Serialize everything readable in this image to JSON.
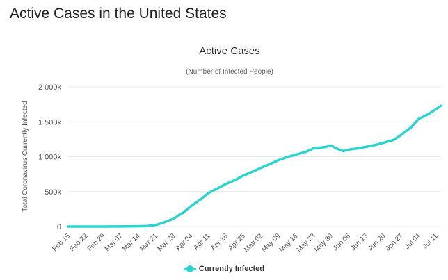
{
  "page": {
    "heading": "Active Cases in the United States"
  },
  "colors": {
    "series": "#2bd4cf",
    "grid": "#e8e8e8",
    "axis_text": "#555555"
  },
  "chart_data": {
    "type": "line",
    "title": "Active Cases",
    "subtitle": "(Number of Infected People)",
    "xlabel": "",
    "ylabel": "Total Coronavirus Currently Infected",
    "ylim": [
      0,
      2000000
    ],
    "yticks": [
      0,
      500000,
      1000000,
      1500000,
      2000000
    ],
    "ytick_labels": [
      "0",
      "500k",
      "1 000k",
      "1 500k",
      "2 000k"
    ],
    "xlim": [
      "2020-02-15",
      "2020-07-13"
    ],
    "xtick_labels": [
      "Feb 15",
      "Feb 22",
      "Feb 29",
      "Mar 07",
      "Mar 14",
      "Mar 21",
      "Mar 28",
      "Apr 04",
      "Apr 11",
      "Apr 18",
      "Apr 25",
      "May 02",
      "May 09",
      "May 16",
      "May 23",
      "May 30",
      "Jun 06",
      "Jun 13",
      "Jun 20",
      "Jun 27",
      "Jul 04",
      "Jul 11"
    ],
    "grid": true,
    "legend": "bottom-center",
    "series": [
      {
        "name": "Currently Infected",
        "x": [
          "2020-02-15",
          "2020-02-22",
          "2020-02-29",
          "2020-03-07",
          "2020-03-10",
          "2020-03-14",
          "2020-03-18",
          "2020-03-21",
          "2020-03-24",
          "2020-03-28",
          "2020-04-01",
          "2020-04-04",
          "2020-04-08",
          "2020-04-11",
          "2020-04-15",
          "2020-04-18",
          "2020-04-22",
          "2020-04-25",
          "2020-04-29",
          "2020-05-02",
          "2020-05-06",
          "2020-05-09",
          "2020-05-13",
          "2020-05-16",
          "2020-05-20",
          "2020-05-22",
          "2020-05-23",
          "2020-05-26",
          "2020-05-28",
          "2020-05-30",
          "2020-06-01",
          "2020-06-04",
          "2020-06-06",
          "2020-06-10",
          "2020-06-13",
          "2020-06-17",
          "2020-06-20",
          "2020-06-24",
          "2020-06-27",
          "2020-07-01",
          "2020-07-04",
          "2020-07-08",
          "2020-07-11",
          "2020-07-13"
        ],
        "y": [
          0,
          0,
          0,
          1000,
          2000,
          4000,
          9000,
          22000,
          55000,
          110000,
          200000,
          290000,
          390000,
          480000,
          550000,
          610000,
          670000,
          730000,
          790000,
          840000,
          900000,
          950000,
          1000000,
          1030000,
          1070000,
          1100000,
          1120000,
          1130000,
          1140000,
          1160000,
          1120000,
          1080000,
          1100000,
          1120000,
          1140000,
          1170000,
          1200000,
          1240000,
          1310000,
          1420000,
          1540000,
          1610000,
          1680000,
          1730000
        ]
      }
    ]
  }
}
